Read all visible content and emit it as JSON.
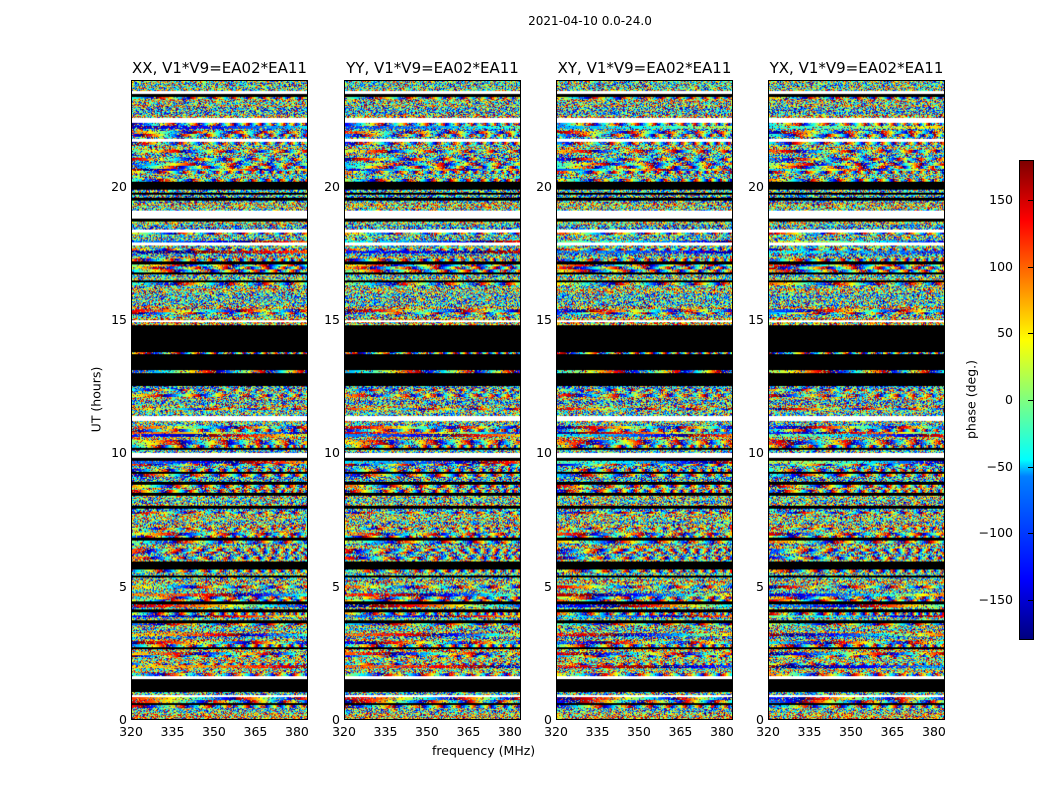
{
  "chart_data": {
    "type": "heatmap",
    "title": "2021-04-10 0.0-24.0",
    "xlabel": "frequency (MHz)",
    "ylabel": "UT (hours)",
    "xlim": [
      320,
      384
    ],
    "ylim": [
      0,
      24
    ],
    "xticks": [
      "320",
      "335",
      "350",
      "365",
      "380"
    ],
    "yticks": [
      "0",
      "5",
      "10",
      "15",
      "20"
    ],
    "panels": [
      {
        "title": "XX, V1*V9=EA02*EA11"
      },
      {
        "title": "YY, V1*V9=EA02*EA11"
      },
      {
        "title": "XY, V1*V9=EA02*EA11"
      },
      {
        "title": "YX, V1*V9=EA02*EA11"
      }
    ],
    "colorbar": {
      "label": "phase (deg.)",
      "range": [
        -180,
        180
      ],
      "ticks": [
        "150",
        "100",
        "50",
        "0",
        "−50",
        "−100",
        "−150"
      ],
      "tick_values": [
        150,
        100,
        50,
        0,
        -50,
        -100,
        -150
      ],
      "colormap": "jet"
    },
    "flagged_black_hours": [
      [
        1.0,
        1.6
      ],
      [
        5.6,
        5.9
      ],
      [
        12.5,
        14.9
      ]
    ],
    "flagged_white_hours": [
      [
        0.98,
        1.02
      ],
      [
        1.5,
        1.6
      ],
      [
        9.8,
        10.0
      ],
      [
        18.8,
        19.1
      ],
      [
        22.4,
        22.6
      ],
      [
        23.5,
        23.6
      ]
    ]
  }
}
